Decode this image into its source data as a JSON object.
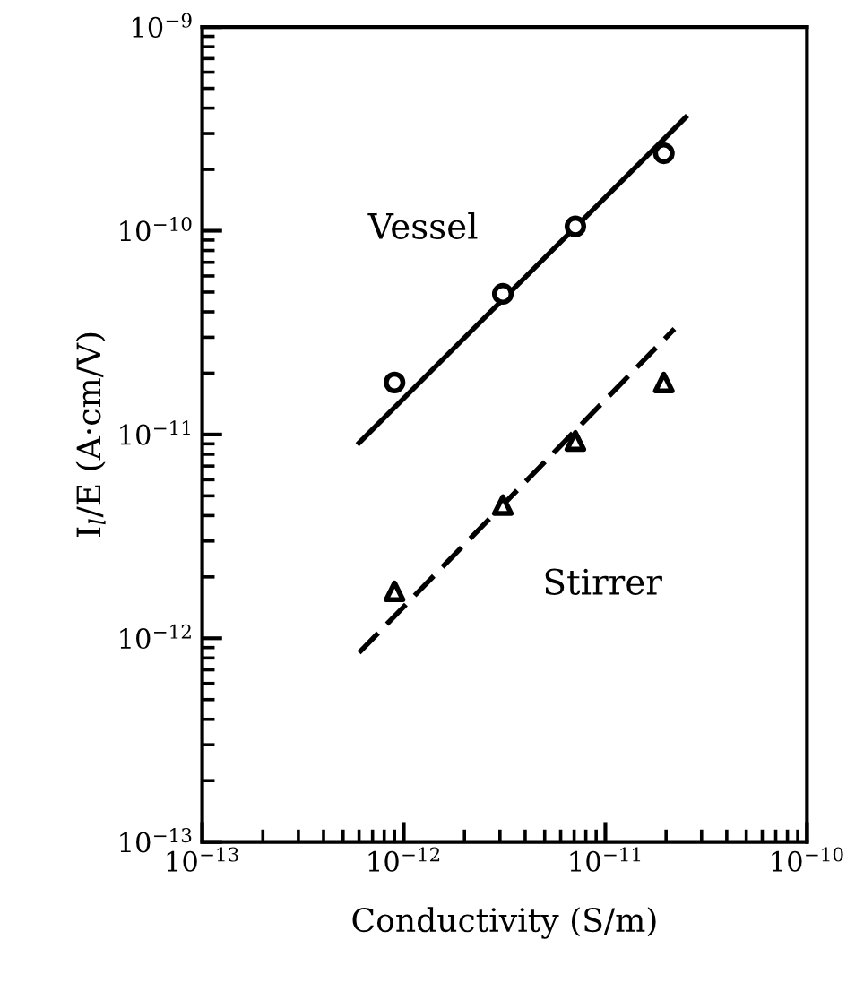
{
  "chart_data": {
    "type": "scatter",
    "xlabel": "Conductivity (S/m)",
    "ylabel": "I$_{l}$/E (A·cm/V)",
    "log": "xy",
    "xlim": [
      1e-13,
      1e-10
    ],
    "ylim": [
      1e-13,
      1e-09
    ],
    "xticks": [
      {
        "value": 1e-13,
        "label": "10$^{−13}$"
      },
      {
        "value": 1e-12,
        "label": "10$^{−12}$"
      },
      {
        "value": 1e-11,
        "label": "10$^{−11}$"
      },
      {
        "value": 1e-10,
        "label": "10$^{−10}$"
      }
    ],
    "yticks": [
      {
        "value": 1e-13,
        "label": "10$^{−13}$"
      },
      {
        "value": 1e-12,
        "label": "10$^{−12}$"
      },
      {
        "value": 1e-11,
        "label": "10$^{−11}$"
      },
      {
        "value": 1e-10,
        "label": "10$^{−10}$"
      },
      {
        "value": 1e-09,
        "label": "10$^{−9}$"
      }
    ],
    "grid": false,
    "legend": false,
    "series": [
      {
        "type": "line",
        "color": "#000000",
        "line_style": "solid",
        "marker": "none",
        "x": [
          6e-13,
          2.5e-11
        ],
        "values": [
          9.1e-12,
          3.6e-10
        ]
      },
      {
        "type": "line",
        "color": "#000000",
        "line_style": "dashed",
        "marker": "none",
        "x": [
          6e-13,
          2.2e-11
        ],
        "values": [
          8.5e-13,
          3.3e-11
        ]
      },
      {
        "name": "Vessel",
        "color": "#000000",
        "marker": "circle",
        "x": [
          9e-13,
          3.1e-12,
          7.1e-12,
          1.95e-11
        ],
        "values": [
          1.8e-11,
          4.9e-11,
          1.05e-10,
          2.4e-10
        ]
      },
      {
        "name": "Stirrer",
        "color": "#000000",
        "marker": "triangle",
        "x": [
          9e-13,
          3.1e-12,
          7.1e-12,
          1.95e-11
        ],
        "values": [
          1.7e-12,
          4.5e-12,
          9.3e-12,
          1.8e-11
        ]
      }
    ]
  }
}
